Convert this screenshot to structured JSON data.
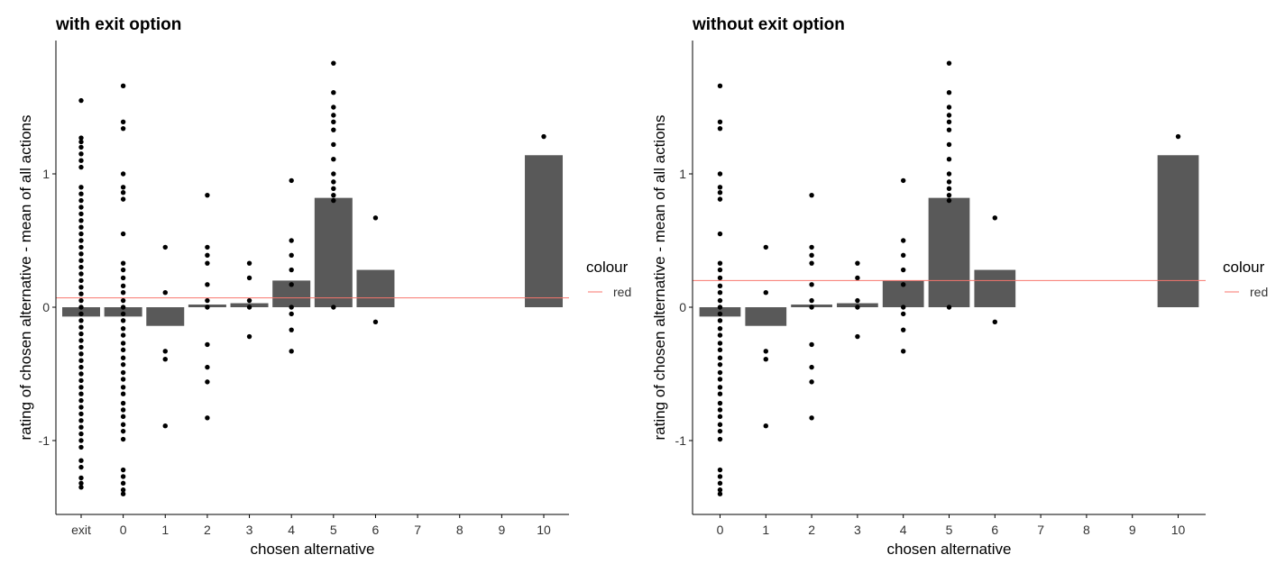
{
  "colors": {
    "bar": "#595959",
    "point": "#000000",
    "hline": "#F8766D",
    "axis": "#000000",
    "text": "#000000",
    "tick_text": "#333333"
  },
  "chart_data": [
    {
      "type": "bar",
      "title": "with exit option",
      "xlabel": "chosen alternative",
      "ylabel": "rating of chosen alternative - mean of all actions",
      "categories": [
        "exit",
        "0",
        "1",
        "2",
        "3",
        "4",
        "5",
        "6",
        "7",
        "8",
        "9",
        "10"
      ],
      "values": [
        -0.07,
        -0.07,
        -0.14,
        0.02,
        0.03,
        0.2,
        0.82,
        0.28,
        null,
        null,
        null,
        1.14
      ],
      "points": [
        [
          1.55,
          1.27,
          1.24,
          1.2,
          1.15,
          1.1,
          1.05,
          0.9,
          0.85,
          0.8,
          0.75,
          0.7,
          0.65,
          0.6,
          0.55,
          0.5,
          0.45,
          0.4,
          0.35,
          0.3,
          0.25,
          0.2,
          0.15,
          0.1,
          0.05,
          0,
          -0.05,
          -0.1,
          -0.15,
          -0.2,
          -0.25,
          -0.3,
          -0.35,
          -0.4,
          -0.45,
          -0.5,
          -0.55,
          -0.6,
          -0.65,
          -0.7,
          -0.75,
          -0.8,
          -0.85,
          -0.9,
          -0.95,
          -1,
          -1.05,
          -1.15,
          -1.2,
          -1.28,
          -1.32,
          -1.35
        ],
        [
          1.66,
          1.39,
          1.34,
          1,
          0.9,
          0.86,
          0.81,
          0.55,
          0.33,
          0.28,
          0.22,
          0.16,
          0.11,
          0.05,
          0,
          -0.05,
          -0.1,
          -0.16,
          -0.21,
          -0.27,
          -0.32,
          -0.38,
          -0.43,
          -0.49,
          -0.54,
          -0.6,
          -0.65,
          -0.72,
          -0.77,
          -0.82,
          -0.88,
          -0.93,
          -0.99,
          -1.22,
          -1.27,
          -1.32,
          -1.37,
          -1.4
        ],
        [
          0.45,
          0.11,
          -0.33,
          -0.39,
          -0.89
        ],
        [
          0.84,
          0.45,
          0.39,
          0.33,
          0.17,
          0.05,
          0,
          -0.28,
          -0.45,
          -0.56,
          -0.83
        ],
        [
          0.33,
          0.22,
          0.05,
          0,
          -0.22
        ],
        [
          0.95,
          0.5,
          0.39,
          0.28,
          0.17,
          0,
          -0.05,
          -0.17,
          -0.33
        ],
        [
          1.83,
          1.61,
          1.5,
          1.44,
          1.39,
          1.33,
          1.22,
          1.11,
          1,
          0.94,
          0.89,
          0.84,
          0.8,
          0
        ],
        [
          0.67,
          -0.11
        ],
        [],
        [],
        [],
        [
          1.28
        ]
      ],
      "reference_line": {
        "y": 0.07,
        "legend_label": "red"
      },
      "legend": {
        "title": "colour",
        "entries": [
          "red"
        ],
        "position": "right"
      },
      "y_ticks": [
        "-1",
        "0",
        "1"
      ],
      "ylim": [
        -1.55,
        2.0
      ],
      "grid": false
    },
    {
      "type": "bar",
      "title": "without exit option",
      "xlabel": "chosen alternative",
      "ylabel": "rating of chosen alternative - mean of all actions",
      "categories": [
        "0",
        "1",
        "2",
        "3",
        "4",
        "5",
        "6",
        "7",
        "8",
        "9",
        "10"
      ],
      "values": [
        -0.07,
        -0.14,
        0.02,
        0.03,
        0.2,
        0.82,
        0.28,
        null,
        null,
        null,
        1.14
      ],
      "points": [
        [
          1.66,
          1.39,
          1.34,
          1,
          0.9,
          0.86,
          0.81,
          0.55,
          0.33,
          0.28,
          0.22,
          0.16,
          0.11,
          0.05,
          0,
          -0.05,
          -0.1,
          -0.16,
          -0.21,
          -0.27,
          -0.32,
          -0.38,
          -0.43,
          -0.49,
          -0.54,
          -0.6,
          -0.65,
          -0.72,
          -0.77,
          -0.82,
          -0.88,
          -0.93,
          -0.99,
          -1.22,
          -1.27,
          -1.32,
          -1.37,
          -1.4
        ],
        [
          0.45,
          0.11,
          -0.33,
          -0.39,
          -0.89
        ],
        [
          0.84,
          0.45,
          0.39,
          0.33,
          0.17,
          0.05,
          0,
          -0.28,
          -0.45,
          -0.56,
          -0.83
        ],
        [
          0.33,
          0.22,
          0.05,
          0,
          -0.22
        ],
        [
          0.95,
          0.5,
          0.39,
          0.28,
          0.17,
          0,
          -0.05,
          -0.17,
          -0.33
        ],
        [
          1.83,
          1.61,
          1.5,
          1.44,
          1.39,
          1.33,
          1.22,
          1.11,
          1,
          0.94,
          0.89,
          0.84,
          0.8,
          0
        ],
        [
          0.67,
          -0.11
        ],
        [],
        [],
        [],
        [
          1.28
        ]
      ],
      "reference_line": {
        "y": 0.2,
        "legend_label": "red"
      },
      "legend": {
        "title": "colour",
        "entries": [
          "red"
        ],
        "position": "right"
      },
      "y_ticks": [
        "-1",
        "0",
        "1"
      ],
      "ylim": [
        -1.55,
        2.0
      ],
      "grid": false
    }
  ]
}
